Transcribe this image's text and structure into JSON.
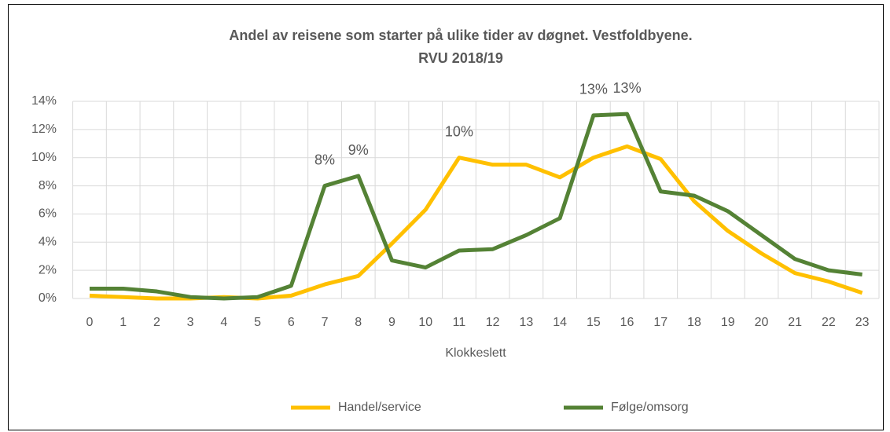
{
  "chart_data": {
    "type": "line",
    "title": [
      "Andel av reisene som starter på ulike tider av døgnet. Vestfoldbyene.",
      "RVU 2018/19"
    ],
    "x_label": "Klokkeslett",
    "categories": [
      "0",
      "1",
      "2",
      "3",
      "4",
      "5",
      "6",
      "7",
      "8",
      "9",
      "10",
      "11",
      "12",
      "13",
      "14",
      "15",
      "16",
      "17",
      "18",
      "19",
      "20",
      "21",
      "22",
      "23"
    ],
    "series": [
      {
        "name": "Handel/service",
        "color": "#ffc000",
        "values": [
          0.2,
          0.1,
          0,
          0,
          0.1,
          0,
          0.2,
          1.0,
          1.6,
          3.9,
          6.3,
          10.0,
          9.5,
          9.5,
          8.6,
          10.0,
          10.8,
          9.9,
          6.9,
          4.8,
          3.2,
          1.8,
          1.2,
          0.4
        ],
        "value_labels": [
          null,
          null,
          null,
          null,
          null,
          null,
          null,
          null,
          null,
          null,
          null,
          "10%",
          null,
          null,
          null,
          null,
          null,
          null,
          null,
          null,
          null,
          null,
          null,
          null
        ]
      },
      {
        "name": "Følge/omsorg",
        "color": "#548235",
        "values": [
          0.7,
          0.7,
          0.5,
          0.1,
          0,
          0.1,
          0.9,
          8.0,
          8.7,
          2.7,
          2.2,
          3.4,
          3.5,
          4.5,
          5.7,
          13.0,
          13.1,
          7.6,
          7.3,
          6.2,
          4.5,
          2.8,
          2.0,
          1.7
        ],
        "value_labels": [
          null,
          null,
          null,
          null,
          null,
          null,
          null,
          "8%",
          "9%",
          null,
          null,
          null,
          null,
          null,
          null,
          "13%",
          "13%",
          null,
          null,
          null,
          null,
          null,
          null,
          null
        ]
      }
    ],
    "ylim": [
      0,
      14
    ],
    "yticks": [
      {
        "value": 0,
        "label": "0%"
      },
      {
        "value": 2,
        "label": "2%"
      },
      {
        "value": 4,
        "label": "4%"
      },
      {
        "value": 6,
        "label": "6%"
      },
      {
        "value": 8,
        "label": "8%"
      },
      {
        "value": 10,
        "label": "10%"
      },
      {
        "value": 12,
        "label": "12%"
      },
      {
        "value": 14,
        "label": "14%"
      }
    ],
    "grid": true,
    "legend": "bottom"
  }
}
